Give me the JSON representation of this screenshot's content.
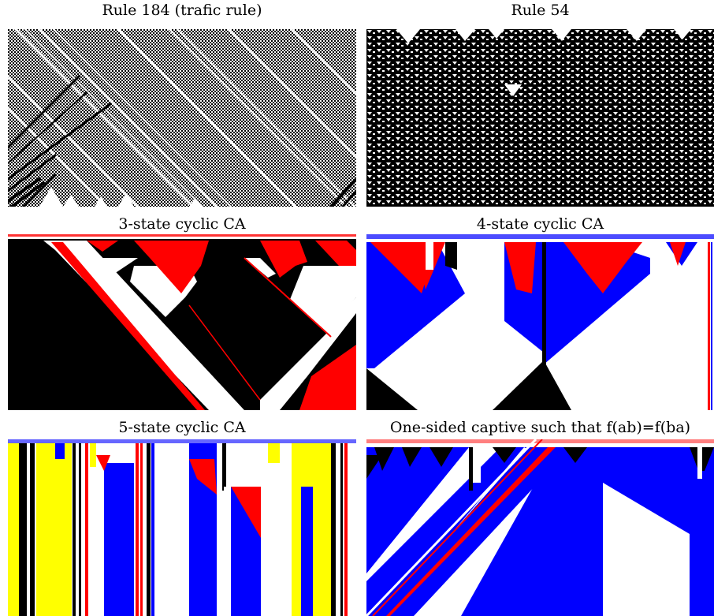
{
  "figure": {
    "panels": [
      {
        "id": "rule184",
        "caption": "Rule 184 (trafic rule)",
        "states": 2,
        "palette": [
          "#ffffff",
          "#000000"
        ]
      },
      {
        "id": "rule54",
        "caption": "Rule 54",
        "states": 2,
        "palette": [
          "#ffffff",
          "#000000"
        ]
      },
      {
        "id": "cyclic3",
        "caption": "3-state cyclic CA",
        "states": 3,
        "palette": [
          "#ffffff",
          "#000000",
          "#ff0000"
        ]
      },
      {
        "id": "cyclic4",
        "caption": "4-state cyclic CA",
        "states": 4,
        "palette": [
          "#ffffff",
          "#000000",
          "#ff0000",
          "#0000ff"
        ]
      },
      {
        "id": "cyclic5",
        "caption": "5-state cyclic CA",
        "states": 5,
        "palette": [
          "#ffffff",
          "#000000",
          "#ff0000",
          "#0000ff",
          "#ffff00"
        ]
      },
      {
        "id": "captive",
        "caption": "One-sided captive such that f(ab)=f(ba)",
        "states": 4,
        "palette": [
          "#ffffff",
          "#000000",
          "#ff0000",
          "#0000ff"
        ]
      }
    ]
  }
}
